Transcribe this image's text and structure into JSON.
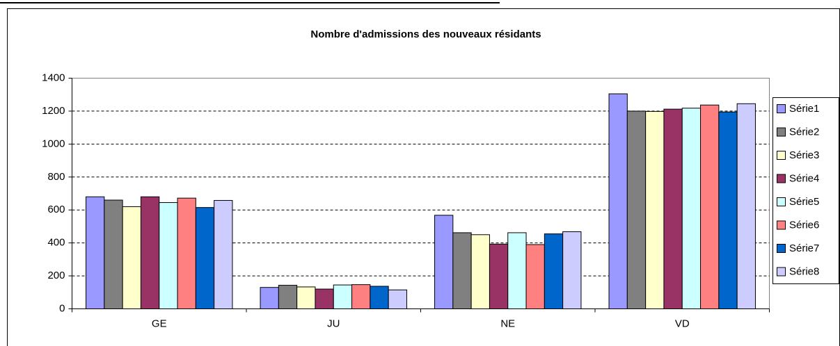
{
  "chart_data": {
    "type": "bar",
    "title": "Nombre d'admissions des nouveaux résidants",
    "categories": [
      "GE",
      "JU",
      "NE",
      "VD"
    ],
    "series": [
      {
        "name": "Série1",
        "color": "#9999ff",
        "values": [
          680,
          130,
          568,
          1305
        ]
      },
      {
        "name": "Série2",
        "color": "#808080",
        "values": [
          660,
          143,
          462,
          1200
        ]
      },
      {
        "name": "Série3",
        "color": "#ffffcc",
        "values": [
          620,
          133,
          450,
          1198
        ]
      },
      {
        "name": "Série4",
        "color": "#993366",
        "values": [
          680,
          120,
          393,
          1212
        ]
      },
      {
        "name": "Série5",
        "color": "#ccffff",
        "values": [
          645,
          145,
          462,
          1218
        ]
      },
      {
        "name": "Série6",
        "color": "#ff8080",
        "values": [
          672,
          147,
          390,
          1237
        ]
      },
      {
        "name": "Série7",
        "color": "#0066cc",
        "values": [
          615,
          137,
          455,
          1195
        ]
      },
      {
        "name": "Série8",
        "color": "#ccccff",
        "values": [
          658,
          115,
          468,
          1245
        ]
      }
    ],
    "ylim": [
      0,
      1400
    ],
    "yticks": [
      0,
      200,
      400,
      600,
      800,
      1000,
      1200,
      1400
    ],
    "grid": true,
    "legend": "right"
  }
}
